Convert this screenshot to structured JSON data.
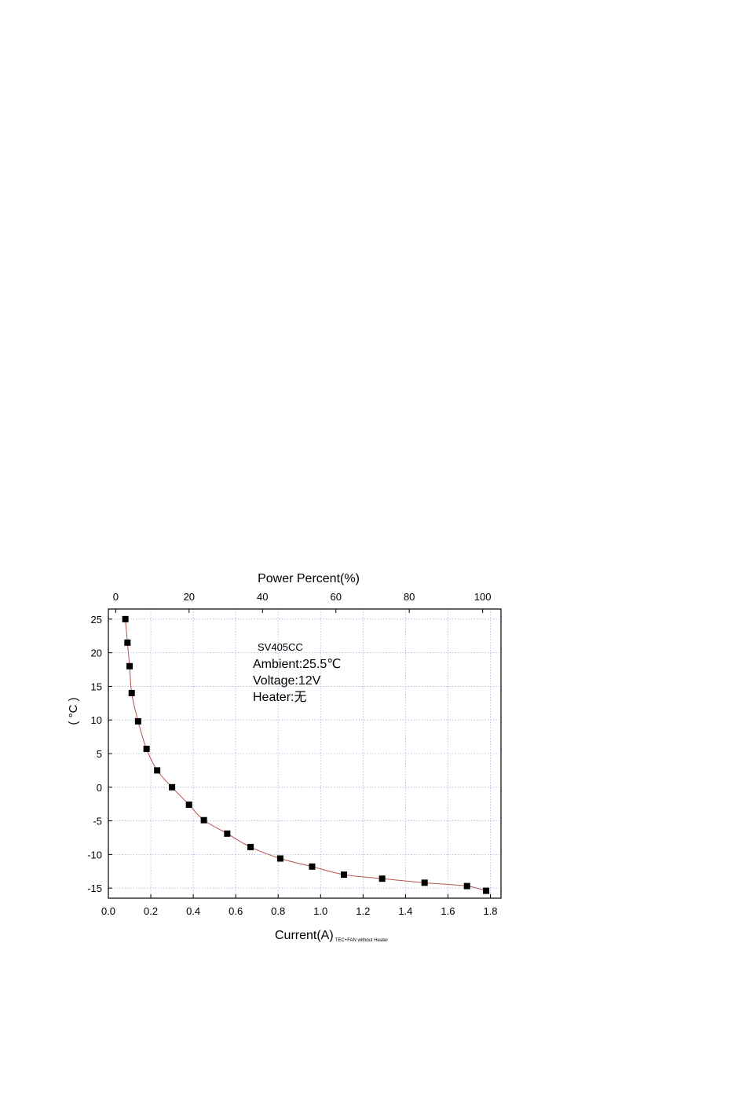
{
  "chart_data": {
    "type": "scatter",
    "title": "",
    "xlabel": "Current(A)",
    "xlabel_subscript": "TEC+FAN without Heater",
    "ylabel_visible_fragment": "( °C )",
    "x2label": "Power Percent(%)",
    "xlim": [
      0.0,
      1.85
    ],
    "ylim": [
      -16.5,
      26.5
    ],
    "x2lim": [
      -2.0,
      105.0
    ],
    "x_ticks": [
      "0.0",
      "0.2",
      "0.4",
      "0.6",
      "0.8",
      "1.0",
      "1.2",
      "1.4",
      "1.6",
      "1.8"
    ],
    "y_ticks": [
      "25",
      "20",
      "15",
      "10",
      "5",
      "0",
      "-5",
      "-10",
      "-15"
    ],
    "x2_ticks": [
      "0",
      "20",
      "40",
      "60",
      "80",
      "100"
    ],
    "grid": true,
    "annotations": [
      "SV405CC",
      "Ambient:25.5℃",
      "Voltage:12V",
      "Heater:无"
    ],
    "series": [
      {
        "marker": "square",
        "line": "smooth",
        "x": [
          0.08,
          0.09,
          0.1,
          0.11,
          0.14,
          0.18,
          0.23,
          0.3,
          0.38,
          0.45,
          0.56,
          0.67,
          0.81,
          0.96,
          1.11,
          1.29,
          1.49,
          1.69,
          1.78
        ],
        "y": [
          25,
          21.5,
          18,
          14,
          9.8,
          5.7,
          2.5,
          0,
          -2.6,
          -4.9,
          -6.9,
          -8.9,
          -10.6,
          -11.8,
          -13.0,
          -13.6,
          -14.2,
          -14.7,
          -15.4
        ]
      }
    ],
    "colors": {
      "line": "#b8524a",
      "marker": "#000000",
      "grid": "#a9b6dc",
      "axis": "#000000"
    }
  }
}
